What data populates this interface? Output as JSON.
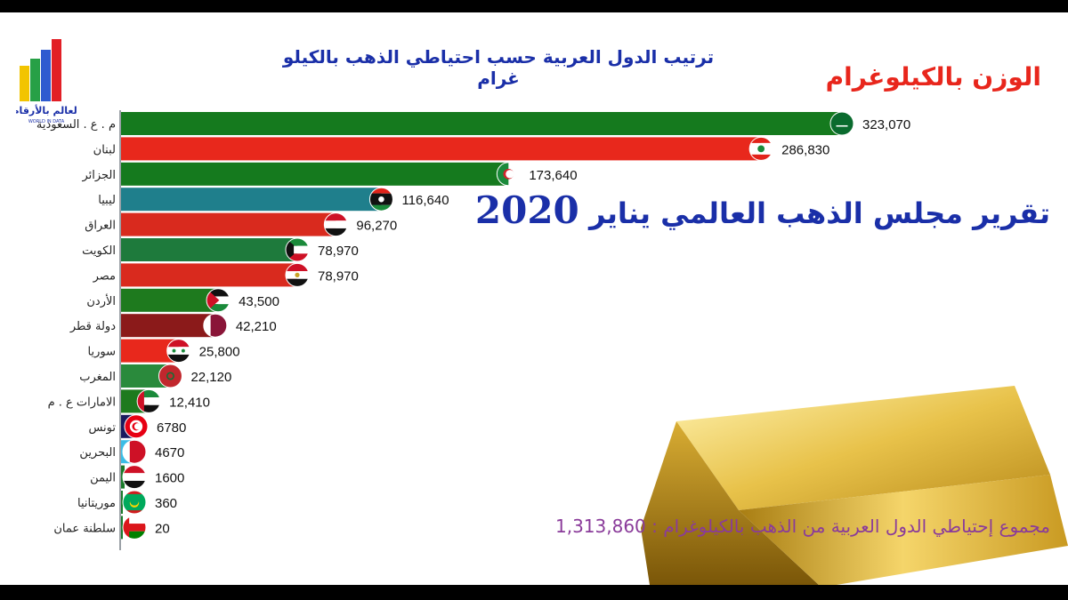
{
  "header": {
    "title": "ترتيب الدول العربية حسب احتياطي الذهب بالكيلو غرام",
    "weight_label": "الوزن بالكيلوغرام",
    "report_text": "تقرير مجلس الذهب العالمي يناير",
    "report_year": "2020",
    "total_text": "مجموع إحتياطي الدول العربية من الذهب بالكيلوغرام : 1,313,860"
  },
  "logo": {
    "text": "العالم بالأرقام",
    "subtext": "WORLD IN DATA"
  },
  "chart_data": {
    "type": "bar",
    "orientation": "horizontal",
    "categories": [
      "م . ع . السعودية",
      "لبنان",
      "الجزائر",
      "ليبيا",
      "العراق",
      "الكويت",
      "مصر",
      "الأردن",
      "دولة قطر",
      "سوريا",
      "المغرب",
      "الامارات ع . م",
      "تونس",
      "البحرين",
      "اليمن",
      "موريتانيا",
      "سلطنة عمان"
    ],
    "values": [
      323070,
      286830,
      173640,
      116640,
      96270,
      78970,
      78970,
      43500,
      42210,
      25800,
      22120,
      12410,
      6780,
      4670,
      1600,
      360,
      20
    ],
    "value_labels": [
      "323,070",
      "286,830",
      "173,640",
      "116,640",
      "96,270",
      "78,970",
      "78,970",
      "43,500",
      "42,210",
      "25,800",
      "22,120",
      "12,410",
      "6780",
      "4670",
      "1600",
      "360",
      "20"
    ],
    "colors": [
      "#157a1e",
      "#e8281c",
      "#157a1e",
      "#1f7f8c",
      "#d92a1e",
      "#1e7a3c",
      "#d92a1e",
      "#1e7a1e",
      "#8b1a1a",
      "#e8281c",
      "#2a8a3c",
      "#1e7a1e",
      "#1a1a5e",
      "#3bbde6",
      "#1a7a2a",
      "#1a7a2a",
      "#1a7a2a"
    ],
    "flag_icons": [
      "saudi-flag-icon",
      "lebanon-flag-icon",
      "algeria-flag-icon",
      "libya-flag-icon",
      "iraq-flag-icon",
      "kuwait-flag-icon",
      "egypt-flag-icon",
      "jordan-flag-icon",
      "qatar-flag-icon",
      "syria-flag-icon",
      "morocco-flag-icon",
      "uae-flag-icon",
      "tunisia-flag-icon",
      "bahrain-flag-icon",
      "yemen-flag-icon",
      "mauritania-flag-icon",
      "oman-flag-icon"
    ],
    "xlim": [
      0,
      330000
    ]
  }
}
